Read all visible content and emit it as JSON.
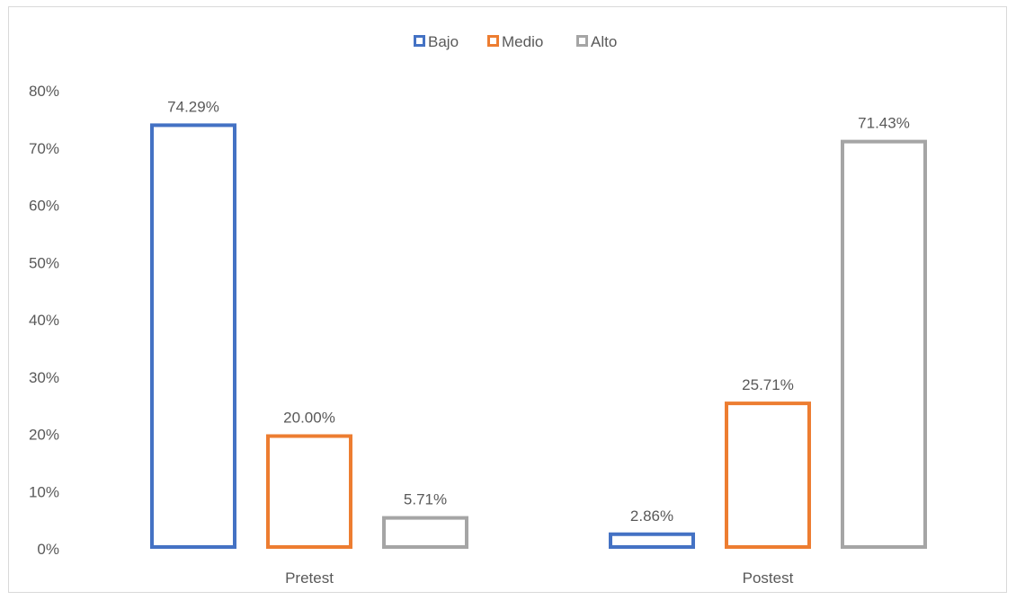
{
  "chart_data": {
    "type": "bar",
    "categories": [
      "Pretest",
      "Postest"
    ],
    "series": [
      {
        "name": "Bajo",
        "values": [
          74.29,
          2.86
        ],
        "labels": [
          "74.29%",
          "2.86%"
        ],
        "color": "#4472c4"
      },
      {
        "name": "Medio",
        "values": [
          20.0,
          25.71
        ],
        "labels": [
          "20.00%",
          "25.71%"
        ],
        "color": "#ed7d31"
      },
      {
        "name": "Alto",
        "values": [
          5.71,
          71.43
        ],
        "labels": [
          "5.71%",
          "71.43%"
        ],
        "color": "#a5a5a5"
      }
    ],
    "ylim": [
      0,
      80
    ],
    "yticks": [
      0,
      10,
      20,
      30,
      40,
      50,
      60,
      70,
      80
    ],
    "ytick_labels": [
      "0%",
      "10%",
      "20%",
      "30%",
      "40%",
      "50%",
      "60%",
      "70%",
      "80%"
    ],
    "legend_position": "top-center",
    "grid": false,
    "bar_style": "outline"
  }
}
